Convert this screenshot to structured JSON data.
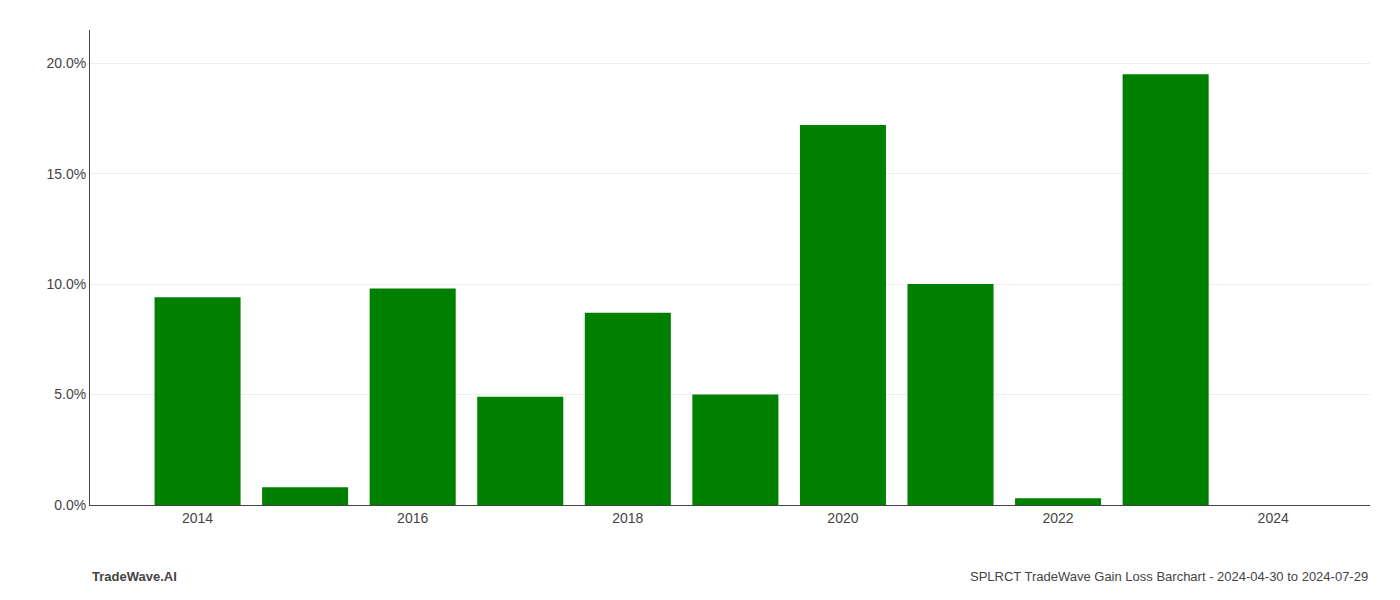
{
  "chart_data": {
    "type": "bar",
    "x": [
      2014,
      2015,
      2016,
      2017,
      2018,
      2019,
      2020,
      2021,
      2022,
      2023
    ],
    "values": [
      0.094,
      0.008,
      0.098,
      0.049,
      0.087,
      0.05,
      0.172,
      0.1,
      0.003,
      0.195
    ],
    "color": "#008000",
    "xlim": [
      2013.0,
      2024.9
    ],
    "xticks": [
      2014,
      2016,
      2018,
      2020,
      2022,
      2024
    ],
    "ylim": [
      0,
      0.215
    ],
    "yticks": [
      {
        "value": 0.0,
        "label": "0.0%"
      },
      {
        "value": 0.05,
        "label": "5.0%"
      },
      {
        "value": 0.1,
        "label": "10.0%"
      },
      {
        "value": 0.15,
        "label": "15.0%"
      },
      {
        "value": 0.2,
        "label": "20.0%"
      }
    ],
    "grid": true,
    "annotations": [
      "TradeWave.AI",
      "SPLRCT TradeWave Gain Loss Barchart - 2024-04-30 to 2024-07-29"
    ]
  }
}
